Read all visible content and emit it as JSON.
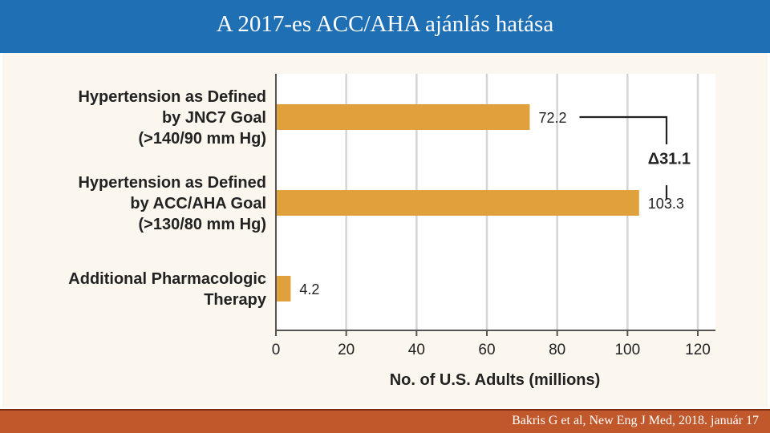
{
  "slide": {
    "title": "A 2017-es ACC/AHA ajánlás hatása",
    "citation": "Bakris G et al, New Eng J Med, 2018. január 17"
  },
  "colors": {
    "header_bg": "#1f6fb5",
    "footer_bg": "#c0582c",
    "panel_bg": "#fbf7ef",
    "bar": "#e0a13d",
    "grid": "#d5d5d5",
    "axis": "#555555",
    "text": "#222222"
  },
  "chart_data": {
    "type": "bar",
    "orientation": "horizontal",
    "categories": [
      [
        "Hypertension as Defined",
        "by JNC7 Goal",
        "(>140/90 mm Hg)"
      ],
      [
        "Hypertension as Defined",
        "by ACC/AHA Goal",
        "(>130/80 mm Hg)"
      ],
      [
        "Additional Pharmacologic",
        "Therapy"
      ]
    ],
    "values": [
      72.2,
      103.3,
      4.2
    ],
    "value_labels": [
      "72.2",
      "103.3",
      "4.2"
    ],
    "xlabel": "No. of U.S. Adults (millions)",
    "xlim": [
      0,
      120
    ],
    "xticks": [
      0,
      20,
      40,
      60,
      80,
      100,
      120
    ],
    "grid": true,
    "annotation": {
      "delta_symbol": "Δ",
      "label": "31.1",
      "between_categories": [
        0,
        1
      ]
    }
  }
}
